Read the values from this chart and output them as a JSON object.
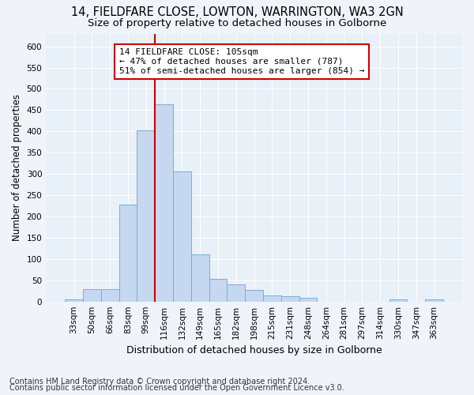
{
  "title": "14, FIELDFARE CLOSE, LOWTON, WARRINGTON, WA3 2GN",
  "subtitle": "Size of property relative to detached houses in Golborne",
  "xlabel": "Distribution of detached houses by size in Golborne",
  "ylabel": "Number of detached properties",
  "footer1": "Contains HM Land Registry data © Crown copyright and database right 2024.",
  "footer2": "Contains public sector information licensed under the Open Government Licence v3.0.",
  "categories": [
    "33sqm",
    "50sqm",
    "66sqm",
    "83sqm",
    "99sqm",
    "116sqm",
    "132sqm",
    "149sqm",
    "165sqm",
    "182sqm",
    "198sqm",
    "215sqm",
    "231sqm",
    "248sqm",
    "264sqm",
    "281sqm",
    "297sqm",
    "314sqm",
    "330sqm",
    "347sqm",
    "363sqm"
  ],
  "values": [
    5,
    30,
    30,
    228,
    403,
    463,
    306,
    110,
    54,
    40,
    27,
    14,
    12,
    8,
    0,
    0,
    0,
    0,
    5,
    0,
    5
  ],
  "bar_color": "#c5d8f0",
  "bar_edge_color": "#7aadd4",
  "background_color": "#f0f4fa",
  "plot_bg_color": "#e8f0f8",
  "grid_color": "#ffffff",
  "vline_x": 4.5,
  "vline_color": "#cc0000",
  "annotation_text": "14 FIELDFARE CLOSE: 105sqm\n← 47% of detached houses are smaller (787)\n51% of semi-detached houses are larger (854) →",
  "annotation_box_color": "#ffffff",
  "annotation_box_edge": "#cc0000",
  "ylim": [
    0,
    630
  ],
  "yticks": [
    0,
    50,
    100,
    150,
    200,
    250,
    300,
    350,
    400,
    450,
    500,
    550,
    600
  ],
  "title_fontsize": 10.5,
  "subtitle_fontsize": 9.5,
  "xlabel_fontsize": 9,
  "ylabel_fontsize": 8.5,
  "tick_fontsize": 7.5,
  "annotation_fontsize": 8,
  "footer_fontsize": 7
}
